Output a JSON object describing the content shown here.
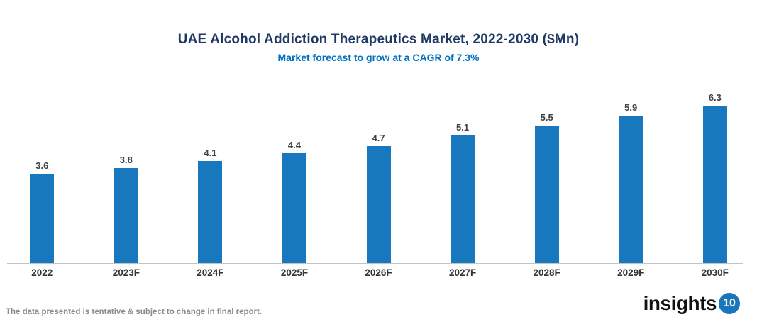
{
  "header": {
    "title": "UAE Alcohol Addiction Therapeutics Market, 2022-2030 ($Mn)",
    "subtitle": "Market forecast to grow at a CAGR of 7.3%"
  },
  "chart_data": {
    "type": "bar",
    "categories": [
      "2022",
      "2023F",
      "2024F",
      "2025F",
      "2026F",
      "2027F",
      "2028F",
      "2029F",
      "2030F"
    ],
    "values": [
      3.6,
      3.8,
      4.1,
      4.4,
      4.7,
      5.1,
      5.5,
      5.9,
      6.3
    ],
    "title": "UAE Alcohol Addiction Therapeutics Market, 2022-2030 ($Mn)",
    "subtitle": "Market forecast to grow at a CAGR of 7.3%",
    "xlabel": "",
    "ylabel": "",
    "ylim": [
      0,
      7
    ],
    "grid": false,
    "legend": "none",
    "value_labels_shown": true,
    "bar_color": "#1878BE"
  },
  "footer": {
    "disclaimer": "The data presented is tentative & subject to change in final report.",
    "logo_text": "insights",
    "logo_number": "10"
  },
  "colors": {
    "title": "#1F3864",
    "subtitle": "#0070C0",
    "bar": "#1878BE",
    "value_label": "#404040",
    "axis_label": "#333333",
    "baseline": "#C3C3C3",
    "disclaimer": "#8C8C8C",
    "logo_circle": "#1B75BB"
  }
}
